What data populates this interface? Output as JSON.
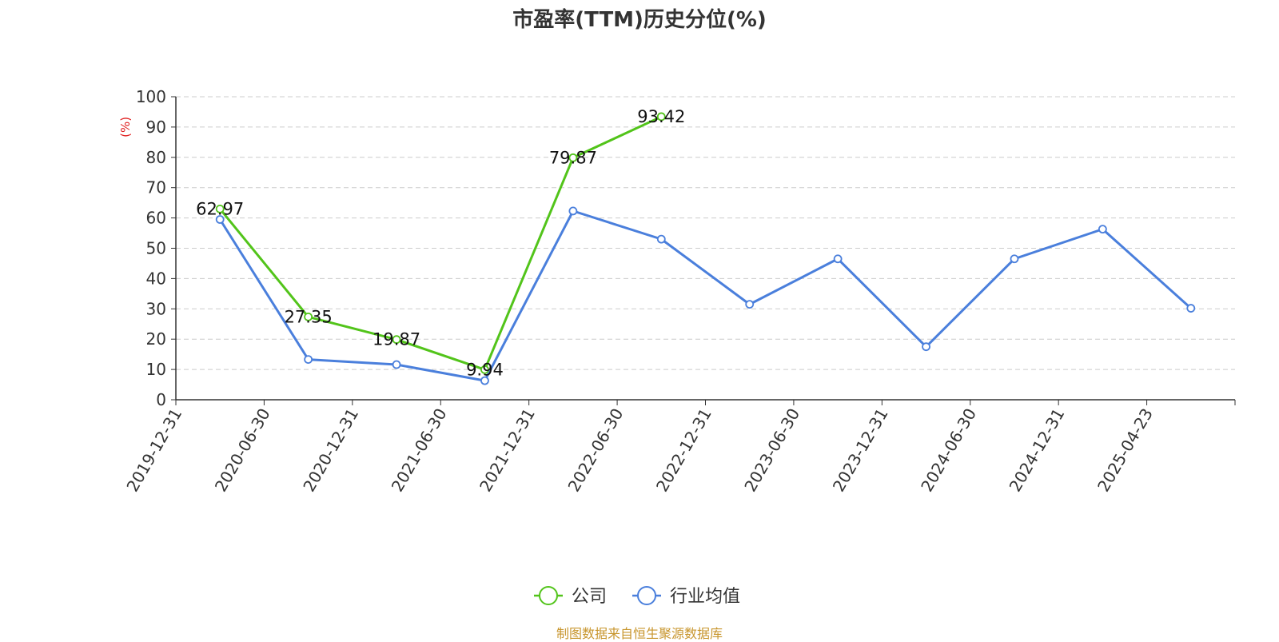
{
  "chart_data": {
    "type": "line",
    "title": "市盈率(TTM)历史分位(%)",
    "ylabel": "(%)",
    "ylim": [
      0,
      100
    ],
    "yticks": [
      0,
      10,
      20,
      30,
      40,
      50,
      60,
      70,
      80,
      90,
      100
    ],
    "categories": [
      "2019-12-31",
      "2020-06-30",
      "2020-12-31",
      "2021-06-30",
      "2021-12-31",
      "2022-06-30",
      "2022-12-31",
      "2023-06-30",
      "2023-12-31",
      "2024-06-30",
      "2024-12-31",
      "2025-04-23"
    ],
    "grid": true,
    "legend_position": "bottom",
    "series": [
      {
        "name": "公司",
        "color": "#52c41a",
        "show_labels": true,
        "values": [
          62.97,
          27.35,
          19.87,
          9.94,
          79.87,
          93.42,
          null,
          null,
          null,
          null,
          null,
          null
        ]
      },
      {
        "name": "行业均值",
        "color": "#4a7fdc",
        "show_labels": false,
        "values": [
          59.5,
          13.3,
          11.6,
          6.3,
          62.3,
          53.0,
          31.5,
          46.5,
          17.5,
          46.5,
          56.3,
          30.2
        ]
      }
    ]
  },
  "source_note": "制图数据来自恒生聚源数据库"
}
